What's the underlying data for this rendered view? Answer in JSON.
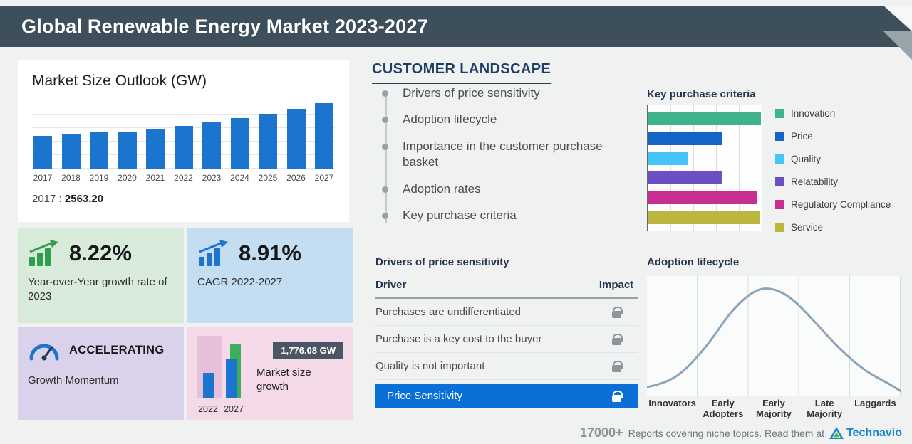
{
  "header": {
    "title": "Global Renewable Energy Market 2023-2027"
  },
  "market_outlook": {
    "title": "Market Size Outlook (GW)",
    "callout_year": "2017",
    "callout_separator": ":",
    "callout_value": "2563.20"
  },
  "stat_cards": {
    "yoy": {
      "value": "8.22%",
      "label": "Year-over-Year growth rate of 2023"
    },
    "cagr": {
      "value": "8.91%",
      "label": "CAGR 2022-2027"
    },
    "momentum": {
      "value": "ACCELERATING",
      "label": "Growth Momentum"
    },
    "market_growth": {
      "label": "Market size growth"
    }
  },
  "customer_landscape": {
    "title": "CUSTOMER  LANDSCAPE",
    "items": [
      "Drivers of price sensitivity",
      "Adoption lifecycle",
      "Importance in the customer purchase basket",
      "Adoption rates",
      "Key purchase criteria"
    ]
  },
  "price_sensitivity_table": {
    "title": "Drivers of price sensitivity",
    "col_driver": "Driver",
    "col_impact": "Impact",
    "rows": [
      "Purchases are undifferentiated",
      "Purchase is a key cost to the buyer",
      "Quality is not important"
    ],
    "highlight_label": "Price Sensitivity"
  },
  "footer": {
    "count": "17000+",
    "text": "Reports covering niche topics. Read them at",
    "brand": "Technavio"
  },
  "colors": {
    "header_bg": "#3e4f5c",
    "accent_blue": "#1b74ce",
    "highlight_row_blue": "#0a70d8",
    "brand_blue": "#1a87c9",
    "brand_green": "#54b948"
  },
  "chart_data": [
    {
      "id": "market_size_outlook",
      "type": "bar",
      "title": "Market Size Outlook (GW)",
      "categories": [
        "2017",
        "2018",
        "2019",
        "2020",
        "2021",
        "2022",
        "2023",
        "2024",
        "2025",
        "2026",
        "2027"
      ],
      "values": [
        2563.2,
        2700,
        2845,
        2900,
        3100,
        3341,
        3616,
        3925,
        4270,
        4660,
        5117
      ],
      "value_note": "Only 2017 is labeled on the chart (2563.20 GW); later values estimated from bar heights",
      "ylabel": "GW",
      "bar_color": "#1b74ce",
      "grid": true
    },
    {
      "id": "key_purchase_criteria",
      "type": "bar",
      "orientation": "horizontal",
      "title": "Key purchase criteria",
      "categories": [
        "Innovation",
        "Price",
        "Quality",
        "Relatability",
        "Regulatory Compliance",
        "Service"
      ],
      "values": [
        100,
        66,
        35,
        66,
        97,
        99
      ],
      "value_note": "Relative bar lengths, no numeric axis labels shown",
      "colors": [
        "#3fb389",
        "#1465c6",
        "#45c4f5",
        "#6b50c4",
        "#c92f93",
        "#bcb63e"
      ],
      "legend_position": "right",
      "grid": true
    },
    {
      "id": "adoption_lifecycle",
      "type": "line",
      "curve": "bell",
      "title": "Adoption lifecycle",
      "categories": [
        "Innovators",
        "Early Adopters",
        "Early Majority",
        "Late Majority",
        "Laggards"
      ],
      "points": [
        [
          0,
          0.0
        ],
        [
          0.06,
          0.03
        ],
        [
          0.14,
          0.14
        ],
        [
          0.24,
          0.42
        ],
        [
          0.33,
          0.76
        ],
        [
          0.42,
          0.97
        ],
        [
          0.49,
          1.0
        ],
        [
          0.57,
          0.9
        ],
        [
          0.66,
          0.66
        ],
        [
          0.76,
          0.38
        ],
        [
          0.86,
          0.16
        ],
        [
          0.95,
          0.04
        ],
        [
          1.0,
          -0.04
        ]
      ],
      "line_color": "#8aa4bc"
    },
    {
      "id": "market_size_growth",
      "type": "bar",
      "title": "Market size growth",
      "categories": [
        "2022",
        "2027"
      ],
      "values": [
        3341,
        5117
      ],
      "growth_label": "1,776.08 GW"
    }
  ]
}
